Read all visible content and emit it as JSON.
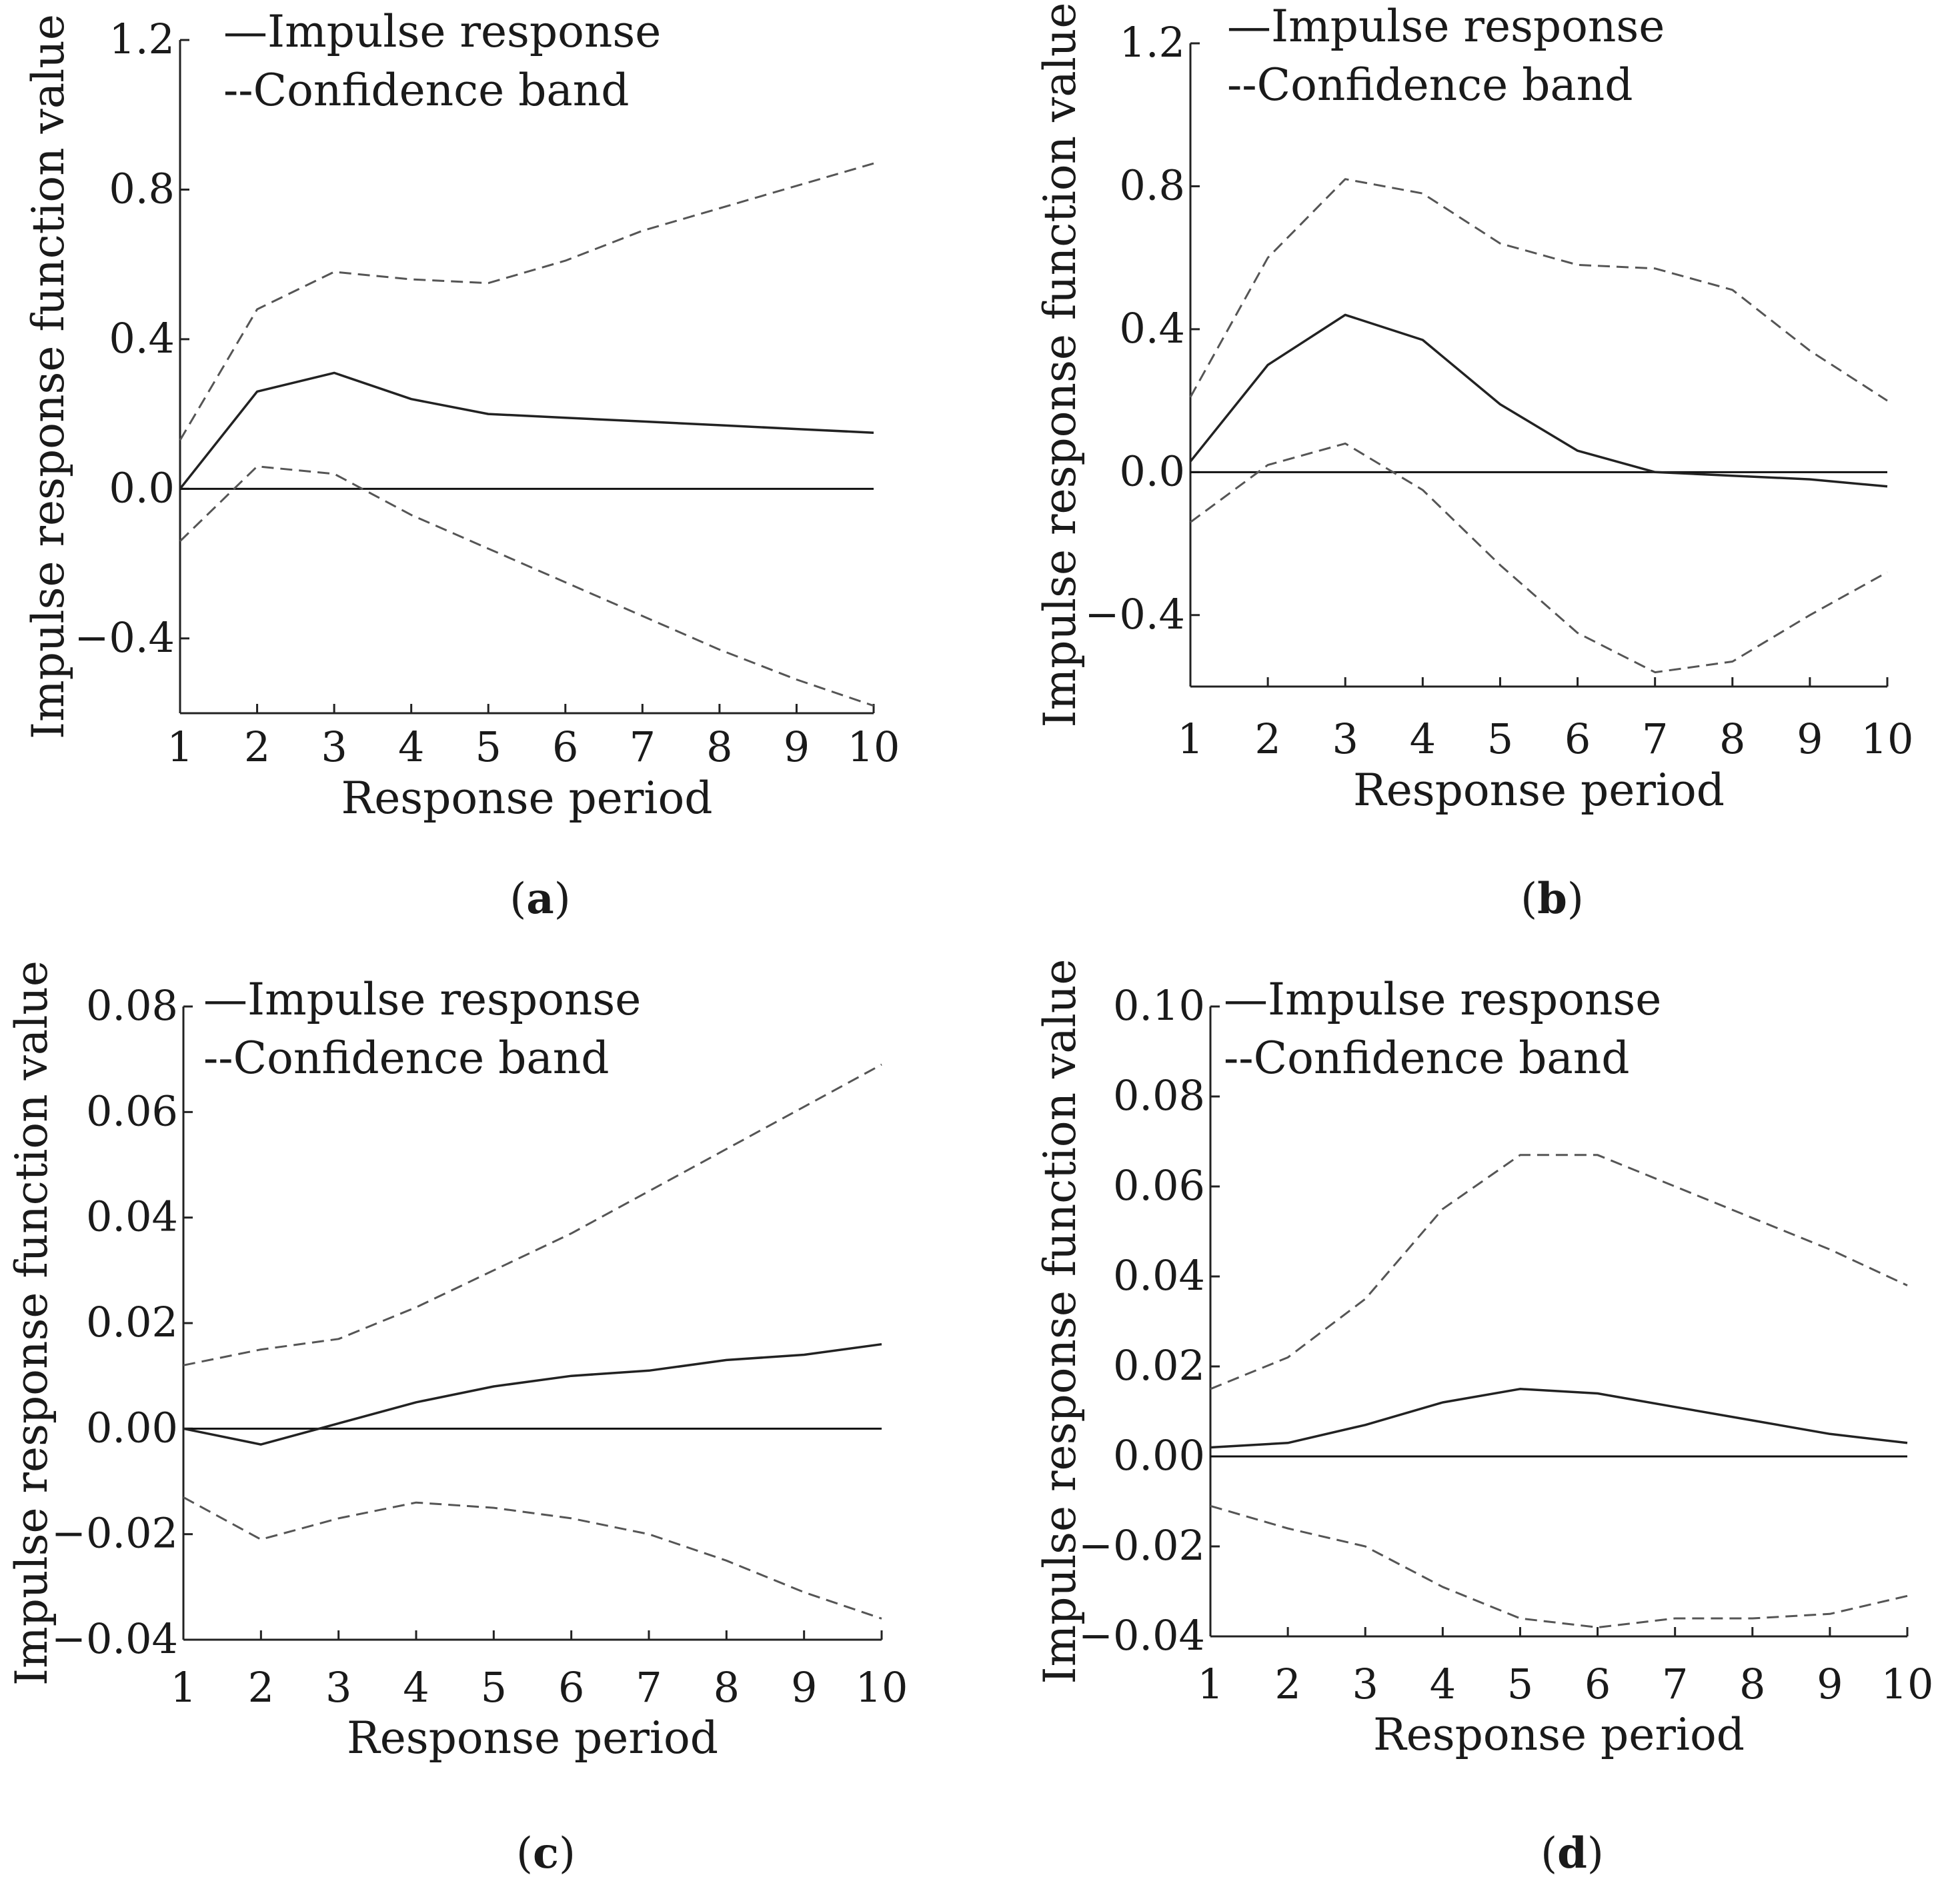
{
  "figure": {
    "panels": [
      {
        "caption": "a",
        "legend": {
          "solid": "—Impulse response",
          "dashed": "--Confidence band"
        }
      },
      {
        "caption": "b",
        "legend": {
          "solid": "—Impulse response",
          "dashed": "--Confidence band"
        }
      },
      {
        "caption": "c",
        "legend": {
          "solid": "—Impulse response",
          "dashed": "--Confidence band"
        }
      },
      {
        "caption": "d",
        "legend": {
          "solid": "—Impulse response",
          "dashed": "--Confidence band"
        }
      }
    ]
  },
  "chart_data": [
    {
      "type": "line",
      "panel": "a",
      "xlabel": "Response period",
      "ylabel": "Impulse response function value",
      "x": [
        1,
        2,
        3,
        4,
        5,
        6,
        7,
        8,
        9,
        10
      ],
      "xlim": [
        1,
        10
      ],
      "ylim": [
        -0.6,
        1.2
      ],
      "yticks": [
        "1.2",
        "0.8",
        "0.4",
        "0.0",
        "−0.4"
      ],
      "ytick_values": [
        1.2,
        0.8,
        0.4,
        0.0,
        -0.4
      ],
      "xticks": [
        "1",
        "2",
        "3",
        "4",
        "5",
        "6",
        "7",
        "8",
        "9",
        "10"
      ],
      "zero_line": true,
      "series": [
        {
          "name": "Impulse response",
          "style": "solid",
          "values": [
            0.0,
            0.26,
            0.31,
            0.24,
            0.2,
            0.19,
            0.18,
            0.17,
            0.16,
            0.15
          ]
        },
        {
          "name": "Confidence band upper",
          "style": "dashed",
          "values": [
            0.13,
            0.48,
            0.58,
            0.56,
            0.55,
            0.61,
            0.69,
            0.75,
            0.81,
            0.87
          ]
        },
        {
          "name": "Confidence band lower",
          "style": "dashed",
          "values": [
            -0.14,
            0.06,
            0.04,
            -0.07,
            -0.16,
            -0.25,
            -0.34,
            -0.43,
            -0.51,
            -0.58
          ]
        }
      ]
    },
    {
      "type": "line",
      "panel": "b",
      "xlabel": "Response period",
      "ylabel": "Impulse response function value",
      "x": [
        1,
        2,
        3,
        4,
        5,
        6,
        7,
        8,
        9,
        10
      ],
      "xlim": [
        1,
        10
      ],
      "ylim": [
        -0.6,
        1.2
      ],
      "yticks": [
        "1.2",
        "0.8",
        "0.4",
        "0.0",
        "−0.4"
      ],
      "ytick_values": [
        1.2,
        0.8,
        0.4,
        0.0,
        -0.4
      ],
      "xticks": [
        "1",
        "2",
        "3",
        "4",
        "5",
        "6",
        "7",
        "8",
        "9",
        "10"
      ],
      "zero_line": true,
      "series": [
        {
          "name": "Impulse response",
          "style": "solid",
          "values": [
            0.03,
            0.3,
            0.44,
            0.37,
            0.19,
            0.06,
            0.0,
            -0.01,
            -0.02,
            -0.04
          ]
        },
        {
          "name": "Confidence band upper",
          "style": "dashed",
          "values": [
            0.21,
            0.6,
            0.82,
            0.78,
            0.64,
            0.58,
            0.57,
            0.51,
            0.34,
            0.2
          ]
        },
        {
          "name": "Confidence band lower",
          "style": "dashed",
          "values": [
            -0.14,
            0.02,
            0.08,
            -0.05,
            -0.26,
            -0.45,
            -0.56,
            -0.53,
            -0.4,
            -0.28
          ]
        }
      ]
    },
    {
      "type": "line",
      "panel": "c",
      "xlabel": "Response period",
      "ylabel": "Impulse response function value",
      "x": [
        1,
        2,
        3,
        4,
        5,
        6,
        7,
        8,
        9,
        10
      ],
      "xlim": [
        1,
        10
      ],
      "ylim": [
        -0.04,
        0.08
      ],
      "yticks": [
        "0.08",
        "0.06",
        "0.04",
        "0.02",
        "0.00",
        "−0.02",
        "−0.04"
      ],
      "ytick_values": [
        0.08,
        0.06,
        0.04,
        0.02,
        0.0,
        -0.02,
        -0.04
      ],
      "xticks": [
        "1",
        "2",
        "3",
        "4",
        "5",
        "6",
        "7",
        "8",
        "9",
        "10"
      ],
      "zero_line": true,
      "series": [
        {
          "name": "Impulse response",
          "style": "solid",
          "values": [
            0.0,
            -0.003,
            0.001,
            0.005,
            0.008,
            0.01,
            0.011,
            0.013,
            0.014,
            0.016
          ]
        },
        {
          "name": "Confidence band upper",
          "style": "dashed",
          "values": [
            0.012,
            0.015,
            0.017,
            0.023,
            0.03,
            0.037,
            0.045,
            0.053,
            0.061,
            0.069
          ]
        },
        {
          "name": "Confidence band lower",
          "style": "dashed",
          "values": [
            -0.013,
            -0.021,
            -0.017,
            -0.014,
            -0.015,
            -0.017,
            -0.02,
            -0.025,
            -0.031,
            -0.036
          ]
        }
      ]
    },
    {
      "type": "line",
      "panel": "d",
      "xlabel": "Response period",
      "ylabel": "Impulse response function value",
      "x": [
        1,
        2,
        3,
        4,
        5,
        6,
        7,
        8,
        9,
        10
      ],
      "xlim": [
        1,
        10
      ],
      "ylim": [
        -0.04,
        0.1
      ],
      "yticks": [
        "0.10",
        "0.08",
        "0.06",
        "0.04",
        "0.02",
        "0.00",
        "−0.02",
        "−0.04"
      ],
      "ytick_values": [
        0.1,
        0.08,
        0.06,
        0.04,
        0.02,
        0.0,
        -0.02,
        -0.04
      ],
      "xticks": [
        "1",
        "2",
        "3",
        "4",
        "5",
        "6",
        "7",
        "8",
        "9",
        "10"
      ],
      "zero_line": true,
      "series": [
        {
          "name": "Impulse response",
          "style": "solid",
          "values": [
            0.002,
            0.003,
            0.007,
            0.012,
            0.015,
            0.014,
            0.011,
            0.008,
            0.005,
            0.003
          ]
        },
        {
          "name": "Confidence band upper",
          "style": "dashed",
          "values": [
            0.015,
            0.022,
            0.035,
            0.055,
            0.067,
            0.067,
            0.06,
            0.053,
            0.046,
            0.038
          ]
        },
        {
          "name": "Confidence band lower",
          "style": "dashed",
          "values": [
            -0.011,
            -0.016,
            -0.02,
            -0.029,
            -0.036,
            -0.038,
            -0.036,
            -0.036,
            -0.035,
            -0.031
          ]
        }
      ]
    }
  ]
}
